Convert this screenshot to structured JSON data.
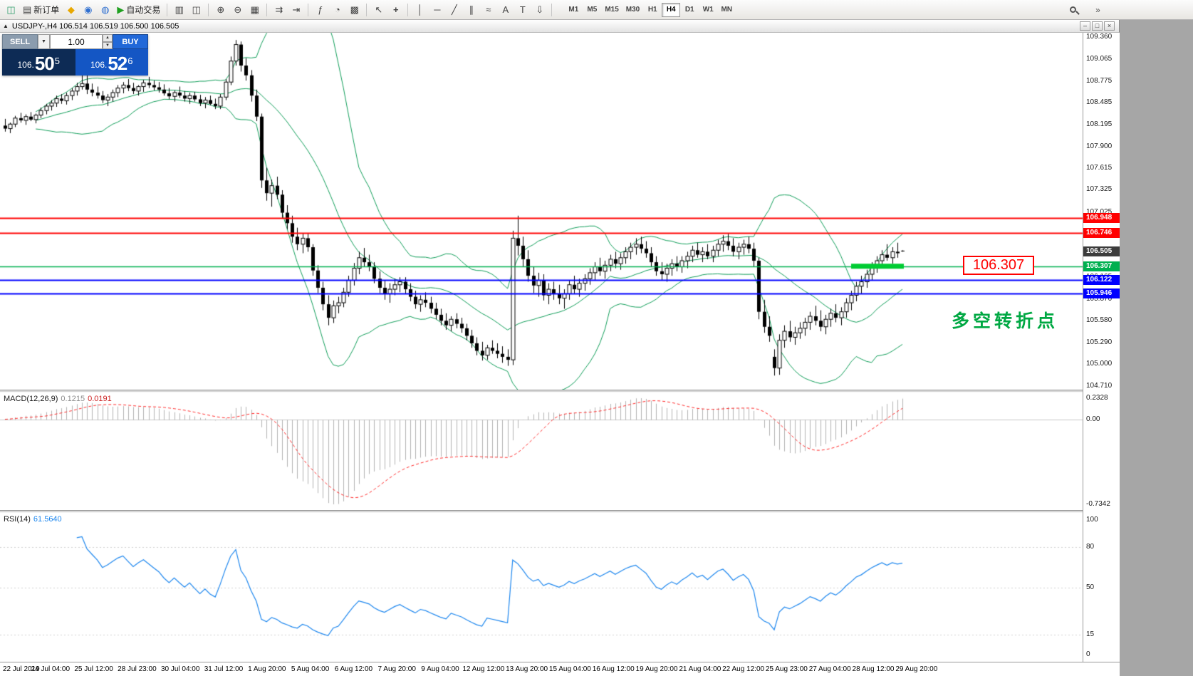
{
  "window": {
    "title": "USDJPY-,H4 106.514 106.519 106.500 106.505"
  },
  "toolbar": {
    "new_order_label": "新订单",
    "auto_trading_label": "自动交易",
    "timeframes": [
      "M1",
      "M5",
      "M15",
      "M30",
      "H1",
      "H4",
      "D1",
      "W1",
      "MN"
    ],
    "active_timeframe": "H4"
  },
  "trade_panel": {
    "sell_label": "SELL",
    "buy_label": "BUY",
    "volume": "1.00",
    "sell_price_prefix": "106.",
    "sell_price_main": "50",
    "sell_price_point": "5",
    "buy_price_prefix": "106.",
    "buy_price_main": "52",
    "buy_price_point": "6"
  },
  "annotations": {
    "price_box": "106.307",
    "note": "多空转折点",
    "note_color": "#00a843"
  },
  "price_axis": {
    "ticks": [
      "109.360",
      "109.065",
      "108.775",
      "108.485",
      "108.195",
      "107.900",
      "107.615",
      "107.325",
      "107.025",
      "106.740",
      "106.455",
      "106.165",
      "105.870",
      "105.580",
      "105.290",
      "105.000",
      "104.710"
    ],
    "levels": [
      {
        "price": 106.948,
        "label": "106.948",
        "color": "#ff0000"
      },
      {
        "price": 106.746,
        "label": "106.746",
        "color": "#ff0000"
      },
      {
        "price": 106.505,
        "label": "106.505",
        "color": "#3c3c3c"
      },
      {
        "price": 106.307,
        "label": "106.307",
        "color": "#00b050"
      },
      {
        "price": 106.122,
        "label": "106.122",
        "color": "#0000ff"
      },
      {
        "price": 105.946,
        "label": "105.946",
        "color": "#0000ff"
      }
    ]
  },
  "chart_data": {
    "type": "candlestick",
    "symbol": "USDJPY-",
    "timeframe": "H4",
    "ylim": [
      104.71,
      109.36
    ],
    "time_labels": [
      "22 Jul 2019",
      "24 Jul 04:00",
      "25 Jul 12:00",
      "28 Jul 23:00",
      "30 Jul 04:00",
      "31 Jul 12:00",
      "1 Aug 20:00",
      "5 Aug 04:00",
      "6 Aug 12:00",
      "7 Aug 20:00",
      "9 Aug 04:00",
      "12 Aug 12:00",
      "13 Aug 20:00",
      "15 Aug 04:00",
      "16 Aug 12:00",
      "19 Aug 20:00",
      "21 Aug 04:00",
      "22 Aug 12:00",
      "25 Aug 23:00",
      "27 Aug 04:00",
      "28 Aug 12:00",
      "29 Aug 20:00"
    ],
    "overlays": {
      "bollinger": {
        "period": 20,
        "deviation": 2,
        "color": "#0f9d58"
      },
      "hlines": [
        {
          "price": 106.948,
          "color": "#ff0000",
          "width": 2
        },
        {
          "price": 106.746,
          "color": "#ff0000",
          "width": 2
        },
        {
          "price": 106.307,
          "color": "#00b050",
          "width": 1.5
        },
        {
          "price": 106.122,
          "color": "#0000ff",
          "width": 2
        },
        {
          "price": 105.946,
          "color": "#0000ff",
          "width": 2
        }
      ],
      "thick_segment": {
        "price": 106.307,
        "from_bar": 165,
        "to_bar": 175,
        "color": "#00cc33",
        "width": 7
      }
    },
    "indicators": [
      {
        "name": "MACD",
        "label": "MACD(12,26,9)",
        "value1": "0.1215",
        "value2": "0.0191",
        "axis_max": "0.2328",
        "axis_zero": "0.00",
        "axis_min": "-0.7342"
      },
      {
        "name": "RSI",
        "label": "RSI(14)",
        "value": "61.5640",
        "axis_labels": [
          "100",
          "80",
          "50",
          "15",
          "0"
        ],
        "levels": [
          80,
          50,
          15
        ]
      }
    ],
    "ohlc": [
      [
        108.18,
        108.27,
        108.1,
        108.14
      ],
      [
        108.14,
        108.22,
        108.08,
        108.2
      ],
      [
        108.2,
        108.31,
        108.16,
        108.28
      ],
      [
        108.28,
        108.35,
        108.22,
        108.25
      ],
      [
        108.25,
        108.33,
        108.19,
        108.3
      ],
      [
        108.3,
        108.36,
        108.24,
        108.26
      ],
      [
        108.26,
        108.34,
        108.21,
        108.32
      ],
      [
        108.32,
        108.42,
        108.28,
        108.38
      ],
      [
        108.38,
        108.47,
        108.33,
        108.44
      ],
      [
        108.44,
        108.52,
        108.38,
        108.48
      ],
      [
        108.48,
        108.58,
        108.43,
        108.54
      ],
      [
        108.54,
        108.6,
        108.47,
        108.51
      ],
      [
        108.51,
        108.62,
        108.46,
        108.58
      ],
      [
        108.58,
        108.68,
        108.52,
        108.64
      ],
      [
        108.64,
        108.75,
        108.58,
        108.7
      ],
      [
        108.7,
        108.9,
        108.66,
        108.74
      ],
      [
        108.74,
        108.88,
        108.6,
        108.66
      ],
      [
        108.66,
        108.74,
        108.57,
        108.62
      ],
      [
        108.62,
        108.7,
        108.54,
        108.58
      ],
      [
        108.58,
        108.64,
        108.48,
        108.52
      ],
      [
        108.52,
        108.6,
        108.44,
        108.56
      ],
      [
        108.56,
        108.66,
        108.5,
        108.62
      ],
      [
        108.62,
        108.72,
        108.56,
        108.68
      ],
      [
        108.68,
        108.76,
        108.61,
        108.72
      ],
      [
        108.72,
        108.8,
        108.64,
        108.68
      ],
      [
        108.68,
        108.75,
        108.6,
        108.64
      ],
      [
        108.64,
        108.72,
        108.58,
        108.7
      ],
      [
        108.7,
        108.79,
        108.63,
        108.75
      ],
      [
        108.75,
        108.83,
        108.68,
        108.72
      ],
      [
        108.72,
        108.78,
        108.65,
        108.69
      ],
      [
        108.69,
        108.76,
        108.62,
        108.66
      ],
      [
        108.66,
        108.73,
        108.58,
        108.61
      ],
      [
        108.61,
        108.68,
        108.53,
        108.57
      ],
      [
        108.57,
        108.65,
        108.5,
        108.62
      ],
      [
        108.62,
        108.7,
        108.55,
        108.58
      ],
      [
        108.58,
        108.64,
        108.5,
        108.54
      ],
      [
        108.54,
        108.62,
        108.47,
        108.58
      ],
      [
        108.58,
        108.63,
        108.5,
        108.53
      ],
      [
        108.53,
        108.59,
        108.44,
        108.48
      ],
      [
        108.48,
        108.56,
        108.41,
        108.52
      ],
      [
        108.52,
        108.58,
        108.45,
        108.47
      ],
      [
        108.47,
        108.54,
        108.4,
        108.44
      ],
      [
        108.44,
        108.6,
        108.4,
        108.56
      ],
      [
        108.56,
        108.8,
        108.52,
        108.76
      ],
      [
        108.76,
        109.1,
        108.72,
        109.04
      ],
      [
        109.04,
        109.32,
        108.98,
        109.26
      ],
      [
        109.26,
        109.3,
        108.9,
        108.98
      ],
      [
        108.98,
        109.08,
        108.78,
        108.85
      ],
      [
        108.85,
        108.92,
        108.5,
        108.58
      ],
      [
        108.58,
        108.66,
        108.24,
        108.3
      ],
      [
        108.3,
        108.34,
        107.35,
        107.45
      ],
      [
        107.45,
        107.62,
        107.18,
        107.28
      ],
      [
        107.28,
        107.46,
        107.1,
        107.38
      ],
      [
        107.38,
        107.5,
        107.2,
        107.26
      ],
      [
        107.26,
        107.32,
        106.95,
        107.02
      ],
      [
        107.02,
        107.12,
        106.8,
        106.88
      ],
      [
        106.88,
        106.98,
        106.62,
        106.7
      ],
      [
        106.7,
        106.82,
        106.52,
        106.6
      ],
      [
        106.6,
        106.74,
        106.48,
        106.68
      ],
      [
        106.68,
        106.75,
        106.5,
        106.56
      ],
      [
        106.56,
        106.6,
        106.18,
        106.25
      ],
      [
        106.25,
        106.32,
        105.95,
        106.02
      ],
      [
        106.02,
        106.1,
        105.72,
        105.8
      ],
      [
        105.8,
        105.92,
        105.52,
        105.62
      ],
      [
        105.62,
        105.85,
        105.55,
        105.78
      ],
      [
        105.78,
        105.9,
        105.68,
        105.82
      ],
      [
        105.82,
        106.02,
        105.76,
        105.96
      ],
      [
        105.96,
        106.18,
        105.9,
        106.12
      ],
      [
        106.12,
        106.35,
        106.05,
        106.28
      ],
      [
        106.28,
        106.5,
        106.2,
        106.42
      ],
      [
        106.42,
        106.55,
        106.3,
        106.36
      ],
      [
        106.36,
        106.46,
        106.24,
        106.3
      ],
      [
        106.3,
        106.36,
        106.08,
        106.14
      ],
      [
        106.14,
        106.24,
        105.95,
        106.02
      ],
      [
        106.02,
        106.12,
        105.86,
        105.94
      ],
      [
        105.94,
        106.08,
        105.82,
        106.0
      ],
      [
        106.0,
        106.14,
        105.92,
        106.06
      ],
      [
        106.06,
        106.16,
        105.96,
        106.1
      ],
      [
        106.1,
        106.16,
        105.94,
        106.0
      ],
      [
        106.0,
        106.08,
        105.84,
        105.9
      ],
      [
        105.9,
        105.98,
        105.74,
        105.8
      ],
      [
        105.8,
        105.92,
        105.7,
        105.86
      ],
      [
        105.86,
        105.96,
        105.76,
        105.82
      ],
      [
        105.82,
        105.9,
        105.68,
        105.74
      ],
      [
        105.74,
        105.82,
        105.6,
        105.66
      ],
      [
        105.66,
        105.74,
        105.52,
        105.58
      ],
      [
        105.58,
        105.68,
        105.46,
        105.52
      ],
      [
        105.52,
        105.64,
        105.44,
        105.6
      ],
      [
        105.6,
        105.68,
        105.48,
        105.54
      ],
      [
        105.54,
        105.62,
        105.42,
        105.48
      ],
      [
        105.48,
        105.54,
        105.32,
        105.38
      ],
      [
        105.38,
        105.46,
        105.22,
        105.28
      ],
      [
        105.28,
        105.36,
        105.12,
        105.18
      ],
      [
        105.18,
        105.3,
        105.05,
        105.12
      ],
      [
        105.12,
        105.26,
        105.06,
        105.22
      ],
      [
        105.22,
        105.32,
        105.14,
        105.18
      ],
      [
        105.18,
        105.28,
        105.08,
        105.14
      ],
      [
        105.14,
        105.24,
        105.02,
        105.1
      ],
      [
        105.1,
        105.2,
        104.98,
        105.06
      ],
      [
        105.06,
        106.78,
        104.99,
        106.68
      ],
      [
        106.68,
        106.98,
        106.45,
        106.58
      ],
      [
        106.58,
        106.7,
        106.3,
        106.4
      ],
      [
        106.4,
        106.52,
        106.1,
        106.18
      ],
      [
        106.18,
        106.3,
        105.95,
        106.05
      ],
      [
        106.05,
        106.22,
        105.9,
        106.12
      ],
      [
        106.12,
        106.2,
        105.85,
        105.92
      ],
      [
        105.92,
        106.08,
        105.8,
        106.0
      ],
      [
        106.0,
        106.1,
        105.86,
        105.94
      ],
      [
        105.94,
        106.06,
        105.8,
        105.88
      ],
      [
        105.88,
        106.0,
        105.74,
        105.94
      ],
      [
        105.94,
        106.12,
        105.86,
        106.06
      ],
      [
        106.06,
        106.18,
        105.94,
        106.0
      ],
      [
        106.0,
        106.14,
        105.9,
        106.08
      ],
      [
        106.08,
        106.2,
        105.98,
        106.14
      ],
      [
        106.14,
        106.28,
        106.06,
        106.22
      ],
      [
        106.22,
        106.36,
        106.12,
        106.3
      ],
      [
        106.3,
        106.42,
        106.18,
        106.24
      ],
      [
        106.24,
        106.38,
        106.14,
        106.32
      ],
      [
        106.32,
        106.46,
        106.24,
        106.4
      ],
      [
        106.4,
        106.5,
        106.28,
        106.34
      ],
      [
        106.34,
        106.48,
        106.26,
        106.42
      ],
      [
        106.42,
        106.56,
        106.34,
        106.5
      ],
      [
        106.5,
        106.62,
        106.4,
        106.56
      ],
      [
        106.56,
        106.68,
        106.46,
        106.6
      ],
      [
        106.6,
        106.7,
        106.48,
        106.54
      ],
      [
        106.54,
        106.64,
        106.42,
        106.48
      ],
      [
        106.48,
        106.56,
        106.3,
        106.36
      ],
      [
        106.36,
        106.44,
        106.18,
        106.24
      ],
      [
        106.24,
        106.36,
        106.12,
        106.2
      ],
      [
        106.2,
        106.34,
        106.1,
        106.28
      ],
      [
        106.28,
        106.4,
        106.18,
        106.34
      ],
      [
        106.34,
        106.44,
        106.24,
        106.3
      ],
      [
        106.3,
        106.44,
        106.22,
        106.38
      ],
      [
        106.38,
        106.5,
        106.28,
        106.44
      ],
      [
        106.44,
        106.58,
        106.36,
        106.52
      ],
      [
        106.52,
        106.62,
        106.42,
        106.46
      ],
      [
        106.46,
        106.56,
        106.36,
        106.5
      ],
      [
        106.5,
        106.6,
        106.4,
        106.44
      ],
      [
        106.44,
        106.58,
        106.36,
        106.52
      ],
      [
        106.52,
        106.66,
        106.44,
        106.6
      ],
      [
        106.6,
        106.72,
        106.5,
        106.64
      ],
      [
        106.64,
        106.74,
        106.52,
        106.58
      ],
      [
        106.58,
        106.68,
        106.44,
        106.5
      ],
      [
        106.5,
        106.62,
        106.4,
        106.56
      ],
      [
        106.56,
        106.66,
        106.46,
        106.6
      ],
      [
        106.6,
        106.7,
        106.48,
        106.54
      ],
      [
        106.54,
        106.62,
        106.3,
        106.38
      ],
      [
        106.38,
        106.42,
        105.6,
        105.7
      ],
      [
        105.7,
        105.86,
        105.42,
        105.5
      ],
      [
        105.5,
        105.64,
        105.3,
        105.38
      ],
      [
        105.1,
        105.2,
        104.85,
        104.95
      ],
      [
        104.95,
        105.4,
        104.86,
        105.32
      ],
      [
        105.32,
        105.52,
        105.22,
        105.44
      ],
      [
        105.44,
        105.58,
        105.3,
        105.36
      ],
      [
        105.36,
        105.5,
        105.26,
        105.42
      ],
      [
        105.42,
        105.56,
        105.34,
        105.48
      ],
      [
        105.48,
        105.62,
        105.38,
        105.56
      ],
      [
        105.56,
        105.7,
        105.46,
        105.64
      ],
      [
        105.64,
        105.78,
        105.52,
        105.58
      ],
      [
        105.58,
        105.72,
        105.44,
        105.5
      ],
      [
        105.5,
        105.66,
        105.4,
        105.6
      ],
      [
        105.6,
        105.74,
        105.5,
        105.68
      ],
      [
        105.68,
        105.8,
        105.56,
        105.62
      ],
      [
        105.62,
        105.76,
        105.52,
        105.7
      ],
      [
        105.7,
        105.88,
        105.62,
        105.82
      ],
      [
        105.82,
        105.98,
        105.72,
        105.92
      ],
      [
        105.92,
        106.1,
        105.84,
        106.04
      ],
      [
        106.04,
        106.18,
        105.94,
        106.1
      ],
      [
        106.1,
        106.26,
        106.02,
        106.2
      ],
      [
        106.2,
        106.36,
        106.12,
        106.3
      ],
      [
        106.3,
        106.44,
        106.22,
        106.38
      ],
      [
        106.38,
        106.52,
        106.3,
        106.46
      ],
      [
        106.46,
        106.6,
        106.38,
        106.42
      ],
      [
        106.42,
        106.56,
        106.34,
        106.5
      ],
      [
        106.5,
        106.62,
        106.42,
        106.48
      ],
      [
        106.514,
        106.519,
        106.5,
        106.505
      ]
    ]
  }
}
